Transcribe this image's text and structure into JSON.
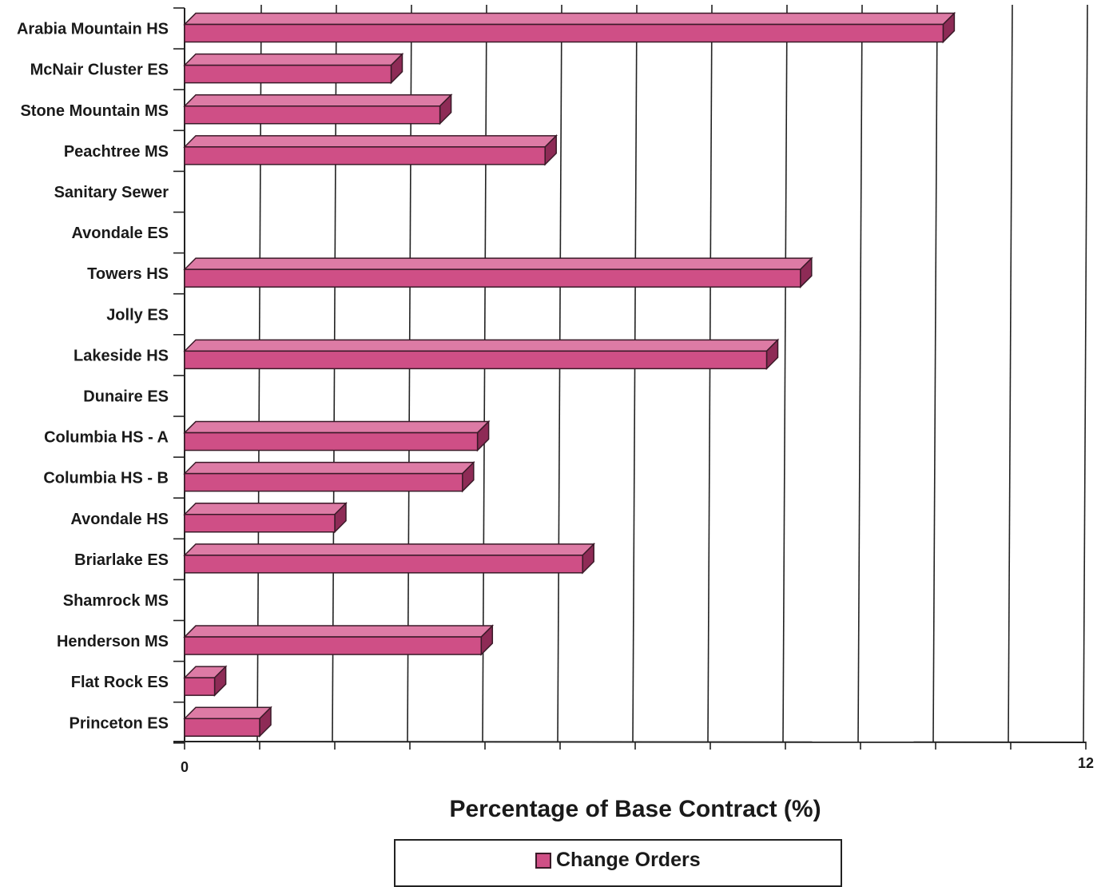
{
  "chart_data": {
    "type": "bar",
    "orientation": "horizontal",
    "categories": [
      "Arabia Mountain HS",
      "McNair Cluster ES",
      "Stone Mountain MS",
      "Peachtree MS",
      "Sanitary Sewer",
      "Avondale ES",
      "Towers HS",
      "Jolly ES",
      "Lakeside HS",
      "Dunaire ES",
      "Columbia HS - A",
      "Columbia HS - B",
      "Avondale HS",
      "Briarlake ES",
      "Shamrock MS",
      "Henderson MS",
      "Flat Rock ES",
      "Princeton ES"
    ],
    "series": [
      {
        "name": "Change Orders",
        "values": [
          10.1,
          2.75,
          3.4,
          4.8,
          0,
          0,
          8.2,
          0,
          7.75,
          0,
          3.9,
          3.7,
          2.0,
          5.3,
          0,
          3.95,
          0.4,
          1.0
        ]
      }
    ],
    "xlim": [
      0,
      12
    ],
    "tick_labels": [
      "0",
      "12"
    ],
    "gridlines": 12,
    "xlabel": "Percentage of Base Contract (%)",
    "ylabel": "",
    "title": "",
    "grid": true,
    "legend_position": "bottom",
    "colors": {
      "bar_front": "#cf4f86",
      "bar_top": "#dd7ba5",
      "bar_side": "#8e2b56",
      "bar_stroke": "#3a1a28",
      "grid": "#222222"
    }
  }
}
